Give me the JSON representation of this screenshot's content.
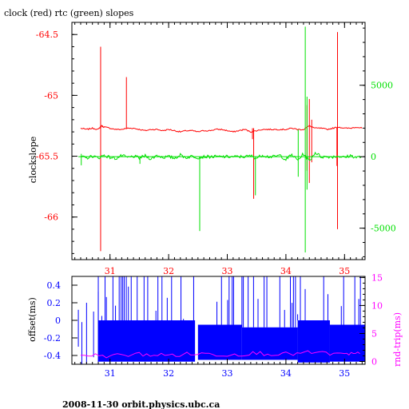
{
  "title": "clock (red) rtc (green) slopes",
  "footer": "2008-11-30  orbit.physics.ubc.ca",
  "colors": {
    "red": "#ff0000",
    "green": "#00e000",
    "blue": "#0000ff",
    "magenta": "#ff00ff",
    "axis": "#000000"
  },
  "chart_data": [
    {
      "type": "line",
      "title": "clock (red) rtc (green) slopes",
      "xlabel": "",
      "ylabel": "clockslope",
      "y2label": "",
      "xlim": [
        30.35,
        35.35
      ],
      "ylim": [
        -66.35,
        -64.4
      ],
      "y2lim": [
        -7200,
        9400
      ],
      "x_ticks": [
        31,
        32,
        33,
        34,
        35
      ],
      "y_ticks": [
        -64.5,
        -65,
        -65.5,
        -66
      ],
      "y_tick_labels": [
        "-64.5",
        "-65",
        "-65.5",
        "-66"
      ],
      "y2_ticks": [
        5000,
        0,
        -5000
      ],
      "y2_tick_labels": [
        "5000",
        "0",
        "-5000"
      ],
      "grid": false,
      "series": [
        {
          "name": "clock",
          "color": "red",
          "axis": "left",
          "x": [
            30.5,
            30.6,
            30.7,
            30.8,
            30.85,
            30.9,
            31.0,
            31.1,
            31.2,
            31.3,
            31.4,
            31.5,
            31.6,
            31.7,
            31.8,
            31.9,
            32.0,
            32.1,
            32.2,
            32.3,
            32.4,
            32.5,
            32.6,
            32.7,
            32.8,
            32.9,
            33.0,
            33.1,
            33.2,
            33.3,
            33.4,
            33.5,
            33.6,
            33.7,
            33.8,
            33.9,
            34.0,
            34.1,
            34.2,
            34.3,
            34.4,
            34.5,
            34.6,
            34.7,
            34.8,
            34.9,
            35.0,
            35.1,
            35.2,
            35.3
          ],
          "y": [
            -65.27,
            -65.28,
            -65.27,
            -65.28,
            -65.25,
            -65.26,
            -65.27,
            -65.28,
            -65.28,
            -65.27,
            -65.27,
            -65.28,
            -65.29,
            -65.28,
            -65.28,
            -65.29,
            -65.28,
            -65.29,
            -65.3,
            -65.29,
            -65.29,
            -65.3,
            -65.29,
            -65.29,
            -65.28,
            -65.28,
            -65.29,
            -65.3,
            -65.29,
            -65.28,
            -65.3,
            -65.29,
            -65.28,
            -65.28,
            -65.28,
            -65.28,
            -65.28,
            -65.27,
            -65.28,
            -65.28,
            -65.25,
            -65.27,
            -65.27,
            -65.28,
            -65.27,
            -65.26,
            -65.27,
            -65.27,
            -65.26,
            -65.27
          ],
          "spikes": [
            {
              "x": 30.84,
              "y_from": -64.6,
              "y_to": -66.28
            },
            {
              "x": 31.28,
              "y_from": -64.85,
              "y_to": -65.27
            },
            {
              "x": 33.45,
              "y_from": -65.27,
              "y_to": -65.85
            },
            {
              "x": 33.43,
              "y_from": -65.27,
              "y_to": -65.36
            },
            {
              "x": 34.36,
              "y_from": -65.08,
              "y_to": -65.62
            },
            {
              "x": 34.4,
              "y_from": -65.03,
              "y_to": -65.72
            },
            {
              "x": 34.44,
              "y_from": -65.2,
              "y_to": -65.55
            },
            {
              "x": 34.88,
              "y_from": -64.48,
              "y_to": -66.1
            },
            {
              "x": 34.87,
              "y_from": -65.27,
              "y_to": -65.58
            }
          ]
        },
        {
          "name": "rtc",
          "color": "green",
          "axis": "right",
          "x": [
            30.5,
            30.6,
            30.7,
            30.8,
            30.9,
            31.0,
            31.1,
            31.2,
            31.3,
            31.4,
            31.5,
            31.6,
            31.7,
            31.8,
            31.9,
            32.0,
            32.1,
            32.2,
            32.3,
            32.4,
            32.5,
            32.6,
            32.7,
            32.8,
            32.9,
            33.0,
            33.1,
            33.2,
            33.3,
            33.4,
            33.5,
            33.6,
            33.7,
            33.8,
            33.9,
            34.0,
            34.1,
            34.2,
            34.3,
            34.4,
            34.5,
            34.6,
            34.7,
            34.8,
            34.9,
            35.0,
            35.1,
            35.2,
            35.3
          ],
          "y": [
            0,
            -100,
            50,
            -80,
            100,
            -50,
            -120,
            80,
            -60,
            30,
            -90,
            60,
            -150,
            100,
            -40,
            0,
            -100,
            120,
            -60,
            40,
            -50,
            0,
            0,
            0,
            0,
            0,
            0,
            0,
            0,
            60,
            -100,
            120,
            0,
            0,
            100,
            -200,
            150,
            -250,
            200,
            -300,
            300,
            0,
            0,
            0,
            50,
            -60,
            80,
            -40,
            0
          ],
          "spikes": [
            {
              "x": 30.51,
              "y_from": 200,
              "y_to": -600
            },
            {
              "x": 31.51,
              "y_from": 0,
              "y_to": -500
            },
            {
              "x": 32.53,
              "y_from": 0,
              "y_to": -5200
            },
            {
              "x": 33.48,
              "y_from": 0,
              "y_to": -2700
            },
            {
              "x": 34.21,
              "y_from": 1900,
              "y_to": -1400
            },
            {
              "x": 34.33,
              "y_from": 9100,
              "y_to": -6700
            },
            {
              "x": 34.36,
              "y_from": 4200,
              "y_to": -2300
            }
          ]
        }
      ]
    },
    {
      "type": "line",
      "title": "",
      "xlabel": "",
      "ylabel": "offset(ms)",
      "y2label": "rnd-trip(ms)",
      "xlim": [
        30.35,
        35.35
      ],
      "ylim": [
        -0.5,
        0.5
      ],
      "y2lim": [
        -0.5,
        15.2
      ],
      "x_ticks": [
        31,
        32,
        33,
        34,
        35
      ],
      "y_ticks": [
        0.4,
        0.2,
        0,
        -0.2,
        -0.4
      ],
      "y_tick_labels": [
        "0.4",
        "0.2",
        "0",
        "-0.2",
        "-0.4"
      ],
      "y2_ticks": [
        15,
        10,
        5,
        0
      ],
      "y2_tick_labels": [
        "15",
        "10",
        "5",
        "0"
      ],
      "grid": false,
      "series": [
        {
          "name": "offset",
          "color": "blue",
          "axis": "left",
          "spikes": [
            {
              "x": 30.46,
              "y_from": -0.3,
              "y_to": 0.12
            },
            {
              "x": 30.52,
              "y_from": -0.52,
              "y_to": -0.02
            },
            {
              "x": 30.6,
              "y_from": -0.5,
              "y_to": 0.2
            },
            {
              "x": 30.72,
              "y_from": -0.42,
              "y_to": 0.1
            },
            {
              "x": 30.8,
              "y_from": -0.52,
              "y_to": 0.5
            },
            {
              "x": 30.86,
              "y_from": -0.3,
              "y_to": 0.05
            }
          ],
          "dense_regions": [
            {
              "x0": 30.8,
              "x1": 32.45,
              "level_top": 0.0,
              "level_bottom": -0.47,
              "spike_top": 0.52
            },
            {
              "x0": 32.5,
              "x1": 33.25,
              "level_top": -0.05,
              "level_bottom": -0.45,
              "spike_top": 0.52
            },
            {
              "x0": 33.25,
              "x1": 34.2,
              "level_top": -0.08,
              "level_bottom": -0.45,
              "spike_top": 0.52
            },
            {
              "x0": 34.2,
              "x1": 34.75,
              "level_top": 0.0,
              "level_bottom": -0.48,
              "spike_top": 0.52
            },
            {
              "x0": 34.75,
              "x1": 35.35,
              "level_top": -0.05,
              "level_bottom": -0.47,
              "spike_top": 0.52
            }
          ]
        },
        {
          "name": "rnd-trip",
          "color": "magenta",
          "axis": "right",
          "x": [
            30.5,
            31.0,
            31.5,
            32.0,
            32.5,
            33.0,
            33.5,
            34.0,
            34.5,
            35.0,
            35.3
          ],
          "y": [
            1.2,
            1.0,
            1.3,
            1.1,
            1.4,
            1.2,
            1.5,
            1.3,
            1.6,
            1.2,
            1.4
          ]
        }
      ]
    }
  ]
}
